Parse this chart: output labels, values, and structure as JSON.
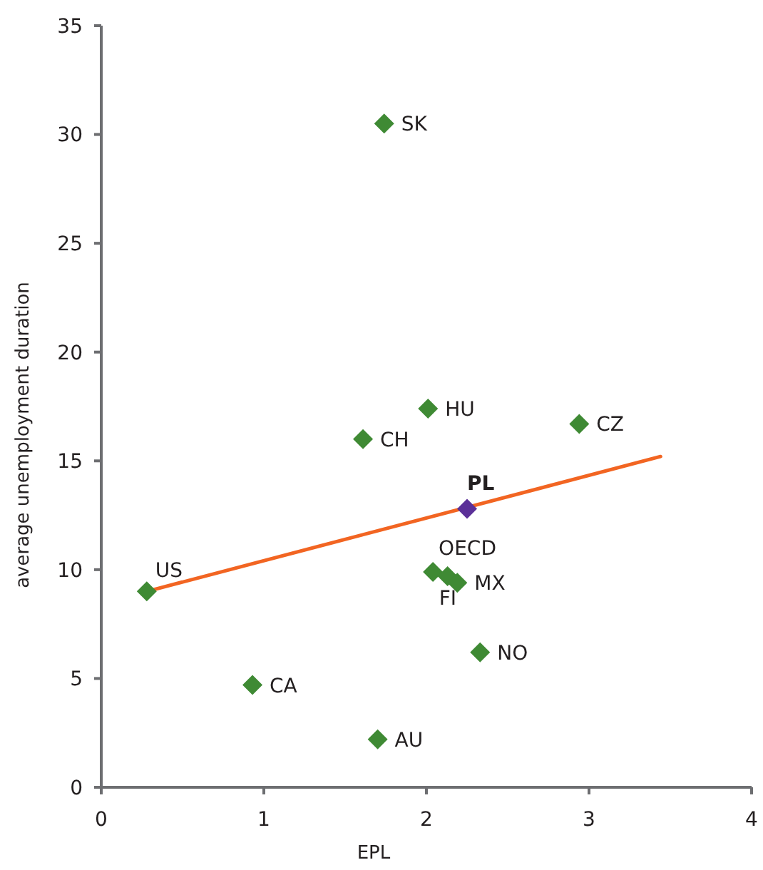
{
  "chart_data": {
    "type": "scatter",
    "xlabel": "EPL",
    "ylabel": "average unemployment duration",
    "xlim": [
      0,
      4
    ],
    "xticks": [
      0,
      1,
      2,
      3,
      4
    ],
    "ylim": [
      0,
      35
    ],
    "yticks": [
      0,
      5,
      10,
      15,
      20,
      25,
      30,
      35
    ],
    "grid": false,
    "marker": "diamond",
    "series": [
      {
        "color": "#3f8a34",
        "x": [
          1.74,
          2.01,
          1.61,
          2.94,
          0.28,
          2.04,
          2.13,
          2.19,
          2.33,
          0.93,
          1.7
        ],
        "values": [
          30.5,
          17.4,
          16.0,
          16.7,
          9.0,
          9.9,
          9.7,
          9.4,
          6.2,
          4.7,
          2.2
        ]
      },
      {
        "color": "#5b3098",
        "x": [
          2.25
        ],
        "values": [
          12.8
        ]
      },
      {
        "type": "line",
        "color": "#f26522",
        "marker": "none",
        "line_style": "solid",
        "x": [
          0.28,
          3.44
        ],
        "values": [
          9.0,
          15.2
        ]
      }
    ],
    "annotations": [
      {
        "text": "SK",
        "x": 1.74,
        "y": 30.5
      },
      {
        "text": "HU",
        "x": 2.01,
        "y": 17.4
      },
      {
        "text": "CH",
        "x": 1.61,
        "y": 16.0
      },
      {
        "text": "CZ",
        "x": 2.94,
        "y": 16.7
      },
      {
        "text": "PL",
        "x": 2.25,
        "y": 12.8
      },
      {
        "text": "US",
        "x": 0.28,
        "y": 9.0
      },
      {
        "text": "OECD",
        "x": 2.04,
        "y": 9.9
      },
      {
        "text": "FI",
        "x": 2.13,
        "y": 9.7
      },
      {
        "text": "MX",
        "x": 2.19,
        "y": 9.4
      },
      {
        "text": "NO",
        "x": 2.33,
        "y": 6.2
      },
      {
        "text": "CA",
        "x": 0.93,
        "y": 4.7
      },
      {
        "text": "AU",
        "x": 1.7,
        "y": 2.2
      }
    ]
  }
}
